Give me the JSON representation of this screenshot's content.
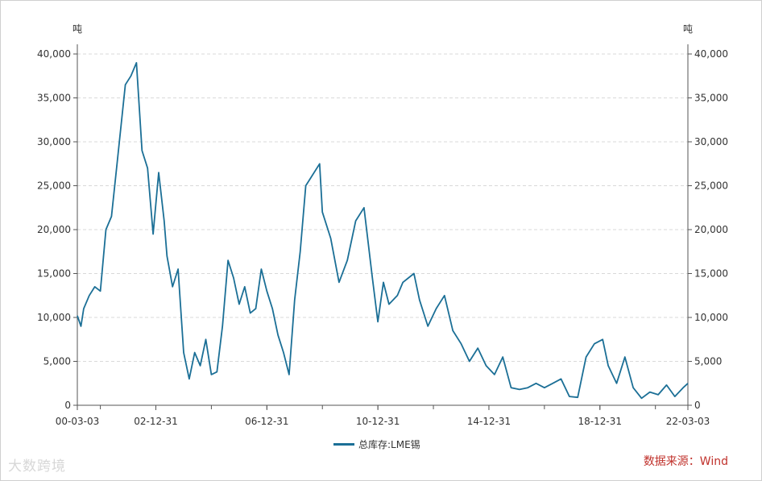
{
  "colors": {
    "series": "#1b6f96",
    "source": "#c0312b",
    "axis": "#555555",
    "grid": "#d9d9d9"
  },
  "chart_data": {
    "type": "line",
    "y_unit_left": "吨",
    "y_unit_right": "吨",
    "ylim": [
      0,
      40000
    ],
    "y_ticks": [
      0,
      5000,
      10000,
      15000,
      20000,
      25000,
      30000,
      35000,
      40000
    ],
    "y_tick_labels": [
      "0",
      "5,000",
      "10,000",
      "15,000",
      "20,000",
      "25,000",
      "30,000",
      "35,000",
      "40,000"
    ],
    "x_tick_labels": [
      "00-03-03",
      "02-12-31",
      "06-12-31",
      "10-12-31",
      "14-12-31",
      "18-12-31",
      "22-03-03"
    ],
    "x_tick_years": [
      2000.17,
      2003.0,
      2007.0,
      2011.0,
      2015.0,
      2019.0,
      2022.17
    ],
    "xlim": [
      2000.17,
      2022.17
    ],
    "grid": "horizontal-dashed",
    "legend_position": "bottom-center",
    "series": [
      {
        "name": "总库存:LME锡",
        "x": [
          2000.17,
          2000.3,
          2000.4,
          2000.6,
          2000.8,
          2001.0,
          2001.2,
          2001.4,
          2001.6,
          2001.9,
          2002.1,
          2002.3,
          2002.5,
          2002.7,
          2002.9,
          2003.1,
          2003.3,
          2003.4,
          2003.6,
          2003.8,
          2004.0,
          2004.2,
          2004.4,
          2004.6,
          2004.8,
          2005.0,
          2005.2,
          2005.4,
          2005.6,
          2005.8,
          2006.0,
          2006.2,
          2006.4,
          2006.6,
          2006.8,
          2007.0,
          2007.2,
          2007.4,
          2007.6,
          2007.8,
          2008.0,
          2008.2,
          2008.4,
          2008.6,
          2008.9,
          2009.0,
          2009.3,
          2009.6,
          2009.9,
          2010.2,
          2010.5,
          2010.8,
          2011.0,
          2011.2,
          2011.4,
          2011.7,
          2011.9,
          2012.1,
          2012.3,
          2012.5,
          2012.8,
          2013.1,
          2013.4,
          2013.7,
          2014.0,
          2014.3,
          2014.6,
          2014.9,
          2015.2,
          2015.5,
          2015.8,
          2016.1,
          2016.4,
          2016.7,
          2017.0,
          2017.3,
          2017.6,
          2017.9,
          2018.2,
          2018.5,
          2018.8,
          2019.1,
          2019.3,
          2019.6,
          2019.9,
          2020.2,
          2020.5,
          2020.8,
          2021.1,
          2021.4,
          2021.7,
          2022.0,
          2022.17
        ],
        "values": [
          10200,
          9000,
          11000,
          12500,
          13500,
          13000,
          20000,
          21500,
          27500,
          36500,
          37500,
          39000,
          29000,
          27000,
          19500,
          26500,
          21000,
          17000,
          13500,
          15500,
          6000,
          3000,
          6000,
          4500,
          7500,
          3500,
          3800,
          9000,
          16500,
          14500,
          11500,
          13500,
          10500,
          11000,
          15500,
          13000,
          11000,
          8000,
          6000,
          3500,
          12000,
          17500,
          25000,
          26000,
          27500,
          22000,
          19000,
          14000,
          16500,
          21000,
          22500,
          14500,
          9500,
          14000,
          11500,
          12500,
          14000,
          14500,
          15000,
          12000,
          9000,
          11000,
          12500,
          8500,
          7000,
          5000,
          6500,
          4500,
          3500,
          5500,
          2000,
          1800,
          2000,
          2500,
          2000,
          2500,
          3000,
          1000,
          900,
          5500,
          7000,
          7500,
          4500,
          2500,
          5500,
          2000,
          800,
          1500,
          1200,
          2300,
          1000,
          2000,
          2500
        ]
      }
    ],
    "source_label": "数据来源：Wind",
    "watermark": "大数跨境"
  }
}
